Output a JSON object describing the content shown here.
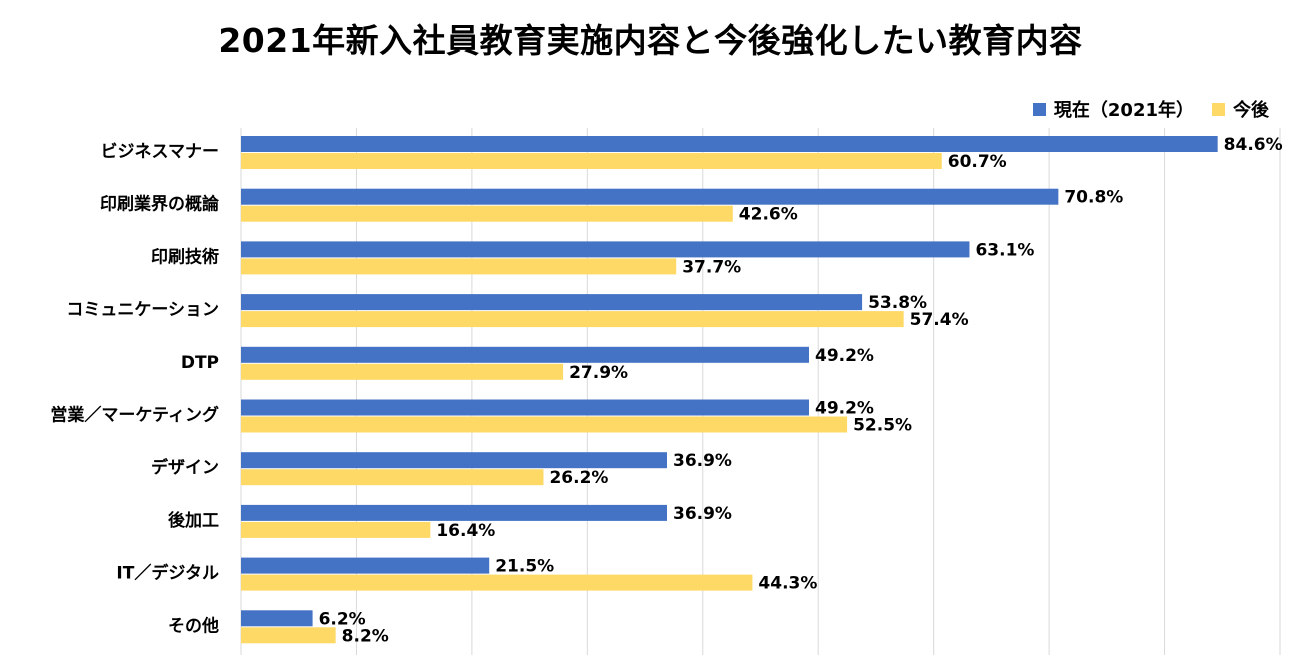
{
  "colors": {
    "current": "#4472C4",
    "future": "#FFD966",
    "grid": "#D9D9D9"
  },
  "chart_data": {
    "type": "bar",
    "orientation": "horizontal",
    "title": "2021年新入社員教育実施内容と今後強化したい教育内容",
    "categories": [
      "ビジネスマナー",
      "印刷業界の概論",
      "印刷技術",
      "コミュニケーション",
      "DTP",
      "営業／マーケティング",
      "デザイン",
      "後加工",
      "IT／デジタル",
      "その他"
    ],
    "series": [
      {
        "name": "現在（2021年）",
        "color": "#4472C4",
        "values": [
          84.6,
          70.8,
          63.1,
          53.8,
          49.2,
          49.2,
          36.9,
          36.9,
          21.5,
          6.2
        ],
        "labels": [
          "84.6%",
          "70.8%",
          "63.1%",
          "53.8%",
          "49.2%",
          "49.2%",
          "36.9%",
          "36.9%",
          "21.5%",
          "6.2%"
        ]
      },
      {
        "name": "今後",
        "color": "#FFD966",
        "values": [
          60.7,
          42.6,
          37.7,
          57.4,
          27.9,
          52.5,
          26.2,
          16.4,
          44.3,
          8.2
        ],
        "labels": [
          "60.7%",
          "42.6%",
          "37.7%",
          "57.4%",
          "27.9%",
          "52.5%",
          "26.2%",
          "16.4%",
          "44.3%",
          "8.2%"
        ]
      }
    ],
    "xlim": [
      0,
      90
    ],
    "grid": true,
    "legend": "top-right"
  }
}
